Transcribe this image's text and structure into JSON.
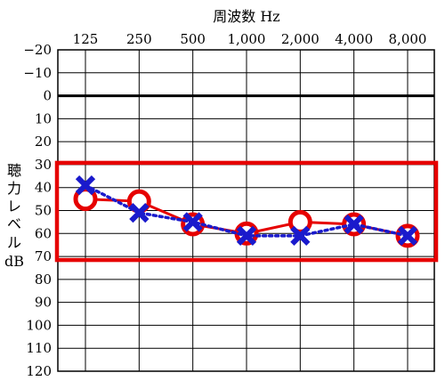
{
  "chart_data": {
    "type": "line",
    "title": "",
    "xlabel": "周波数 Hz",
    "ylabel": [
      "聴",
      "力",
      "レ",
      "ベ",
      "ル",
      "dB"
    ],
    "categories": [
      "125",
      "250",
      "500",
      "1,000",
      "2,000",
      "4,000",
      "8,000"
    ],
    "yticks": [
      "−20",
      "−10",
      "0",
      "10",
      "20",
      "30",
      "40",
      "50",
      "60",
      "70",
      "80",
      "90",
      "100",
      "110",
      "120"
    ],
    "ylim": [
      -20,
      120
    ],
    "y_inverted": true,
    "reference_line_y": 0,
    "highlight_band": [
      30,
      70
    ],
    "grid": true,
    "series": [
      {
        "marker": "circle",
        "color": "#e60000",
        "line_style": "solid",
        "values": [
          45,
          46,
          56,
          60,
          55,
          56,
          61
        ]
      },
      {
        "marker": "x",
        "color": "#1a1acc",
        "line_style": "dotted",
        "values": [
          39,
          51,
          55,
          61,
          61,
          56,
          61
        ]
      }
    ],
    "colors": {
      "highlight": "#e60000",
      "grid": "#000000"
    }
  }
}
